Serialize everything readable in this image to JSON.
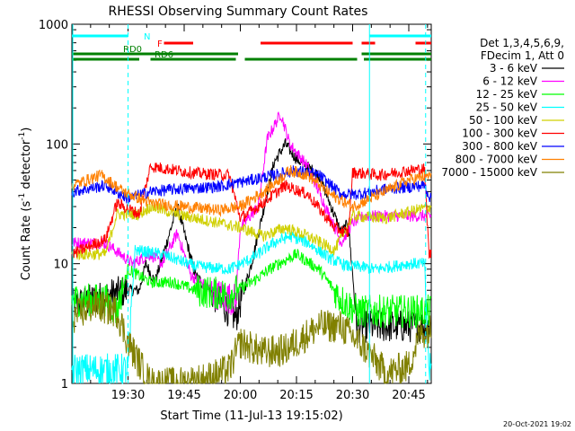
{
  "chart_data": {
    "type": "line",
    "title": "RHESSI Observing Summary Count Rates",
    "xlabel": "Start Time (11-Jul-13 19:15:02)",
    "ylabel_parts": [
      "Count Rate (s",
      "-1",
      " detector",
      "-1",
      ")"
    ],
    "y_scale": "log",
    "ylim": [
      1,
      1000
    ],
    "xlim_minutes": [
      19.25,
      20.85
    ],
    "x_ticks": [
      {
        "t": 19.5,
        "label": "19:30"
      },
      {
        "t": 19.75,
        "label": "19:45"
      },
      {
        "t": 20.0,
        "label": "20:00"
      },
      {
        "t": 20.25,
        "label": "20:15"
      },
      {
        "t": 20.5,
        "label": "20:30"
      },
      {
        "t": 20.75,
        "label": "20:45"
      }
    ],
    "y_ticks": [
      {
        "v": 1,
        "label": "1"
      },
      {
        "v": 10,
        "label": "10"
      },
      {
        "v": 100,
        "label": "100"
      },
      {
        "v": 1000,
        "label": "1000"
      }
    ],
    "legend_header": [
      "Det 1,3,4,5,6,9,",
      "FDecim 1, Att 0"
    ],
    "legend_position": "right",
    "series": [
      {
        "name": "3 - 6 keV",
        "color": "#000000",
        "points": [
          [
            19.25,
            4.5
          ],
          [
            19.5,
            6
          ],
          [
            19.55,
            6
          ],
          [
            19.58,
            10
          ],
          [
            19.62,
            7
          ],
          [
            19.72,
            30
          ],
          [
            19.8,
            8
          ],
          [
            19.9,
            5
          ],
          [
            19.98,
            3.5
          ],
          [
            20.05,
            10
          ],
          [
            20.15,
            70
          ],
          [
            20.2,
            100
          ],
          [
            20.25,
            75
          ],
          [
            20.35,
            55
          ],
          [
            20.45,
            18
          ],
          [
            20.48,
            22
          ],
          [
            20.52,
            3
          ],
          [
            20.75,
            3
          ],
          [
            20.85,
            3
          ]
        ]
      },
      {
        "name": "6 - 12 keV",
        "color": "#ff00ff",
        "points": [
          [
            19.25,
            15
          ],
          [
            19.38,
            15
          ],
          [
            19.42,
            14
          ],
          [
            19.52,
            10
          ],
          [
            19.6,
            12
          ],
          [
            19.65,
            10
          ],
          [
            19.72,
            18
          ],
          [
            19.78,
            8
          ],
          [
            19.9,
            5.5
          ],
          [
            19.98,
            5
          ],
          [
            20.0,
            20
          ],
          [
            20.08,
            30
          ],
          [
            20.12,
            110
          ],
          [
            20.18,
            180
          ],
          [
            20.22,
            100
          ],
          [
            20.3,
            65
          ],
          [
            20.45,
            15
          ],
          [
            20.5,
            22
          ],
          [
            20.55,
            25
          ],
          [
            20.7,
            25
          ],
          [
            20.85,
            25
          ]
        ]
      },
      {
        "name": "12 - 25 keV",
        "color": "#00ff00",
        "points": [
          [
            19.25,
            5
          ],
          [
            19.4,
            5
          ],
          [
            19.45,
            4
          ],
          [
            19.5,
            9
          ],
          [
            19.6,
            7
          ],
          [
            19.7,
            7
          ],
          [
            19.8,
            6
          ],
          [
            19.95,
            5.5
          ],
          [
            20.05,
            7
          ],
          [
            20.15,
            9.5
          ],
          [
            20.25,
            12
          ],
          [
            20.35,
            9
          ],
          [
            20.45,
            5
          ],
          [
            20.52,
            4
          ],
          [
            20.6,
            4
          ],
          [
            20.75,
            4
          ],
          [
            20.85,
            4
          ]
        ]
      },
      {
        "name": "25 - 50 keV",
        "color": "#00ffff",
        "points": [
          [
            19.25,
            1.3
          ],
          [
            19.5,
            1.3
          ],
          [
            19.53,
            13
          ],
          [
            19.65,
            12
          ],
          [
            19.8,
            9.5
          ],
          [
            19.95,
            9
          ],
          [
            20.05,
            11
          ],
          [
            20.15,
            15
          ],
          [
            20.22,
            17
          ],
          [
            20.3,
            15
          ],
          [
            20.4,
            11
          ],
          [
            20.48,
            9.5
          ],
          [
            20.52,
            9.5
          ],
          [
            20.6,
            9
          ],
          [
            20.75,
            10
          ],
          [
            20.82,
            10
          ],
          [
            20.84,
            1.3
          ],
          [
            20.85,
            1.3
          ]
        ]
      },
      {
        "name": "50 - 100 keV",
        "color": "#d0d000",
        "points": [
          [
            19.25,
            12
          ],
          [
            19.4,
            12
          ],
          [
            19.45,
            26
          ],
          [
            19.55,
            26
          ],
          [
            19.6,
            30
          ],
          [
            19.75,
            25
          ],
          [
            19.9,
            22
          ],
          [
            20.0,
            20
          ],
          [
            20.1,
            17
          ],
          [
            20.2,
            20
          ],
          [
            20.3,
            17
          ],
          [
            20.42,
            13
          ],
          [
            20.5,
            25
          ],
          [
            20.65,
            24
          ],
          [
            20.78,
            28
          ],
          [
            20.85,
            30
          ]
        ]
      },
      {
        "name": "100 - 300 keV",
        "color": "#ff0000",
        "points": [
          [
            19.25,
            12
          ],
          [
            19.4,
            16
          ],
          [
            19.45,
            32
          ],
          [
            19.55,
            26
          ],
          [
            19.6,
            65
          ],
          [
            19.8,
            57
          ],
          [
            19.95,
            55
          ],
          [
            20.0,
            24
          ],
          [
            20.08,
            30
          ],
          [
            20.2,
            45
          ],
          [
            20.3,
            38
          ],
          [
            20.42,
            20
          ],
          [
            20.48,
            18
          ],
          [
            20.5,
            58
          ],
          [
            20.62,
            55
          ],
          [
            20.75,
            60
          ],
          [
            20.82,
            62
          ],
          [
            20.84,
            12
          ],
          [
            20.85,
            12
          ]
        ]
      },
      {
        "name": "300 - 800 keV",
        "color": "#0000ff",
        "points": [
          [
            19.25,
            40
          ],
          [
            19.4,
            45
          ],
          [
            19.5,
            35
          ],
          [
            19.6,
            40
          ],
          [
            19.72,
            42
          ],
          [
            19.9,
            44
          ],
          [
            20.05,
            50
          ],
          [
            20.15,
            55
          ],
          [
            20.25,
            60
          ],
          [
            20.35,
            55
          ],
          [
            20.45,
            38
          ],
          [
            20.52,
            38
          ],
          [
            20.65,
            42
          ],
          [
            20.82,
            45
          ],
          [
            20.85,
            34
          ]
        ]
      },
      {
        "name": "800 - 7000 keV",
        "color": "#ff8000",
        "points": [
          [
            19.25,
            45
          ],
          [
            19.38,
            55
          ],
          [
            19.48,
            40
          ],
          [
            19.6,
            32
          ],
          [
            19.75,
            30
          ],
          [
            19.9,
            28
          ],
          [
            20.0,
            30
          ],
          [
            20.12,
            42
          ],
          [
            20.22,
            60
          ],
          [
            20.3,
            55
          ],
          [
            20.4,
            38
          ],
          [
            20.5,
            30
          ],
          [
            20.62,
            38
          ],
          [
            20.75,
            50
          ],
          [
            20.85,
            55
          ]
        ]
      },
      {
        "name": "7000 - 15000 keV",
        "color": "#808000",
        "points": [
          [
            19.25,
            3.5
          ],
          [
            19.35,
            4.5
          ],
          [
            19.45,
            4
          ],
          [
            19.5,
            2.2
          ],
          [
            19.6,
            1
          ],
          [
            19.72,
            1
          ],
          [
            19.85,
            1.1
          ],
          [
            19.95,
            1.3
          ],
          [
            20.0,
            2.2
          ],
          [
            20.1,
            1.8
          ],
          [
            20.2,
            1.9
          ],
          [
            20.35,
            3
          ],
          [
            20.45,
            3
          ],
          [
            20.55,
            2
          ],
          [
            20.65,
            1.2
          ],
          [
            20.75,
            1.4
          ],
          [
            20.8,
            2.6
          ],
          [
            20.85,
            2.8
          ]
        ]
      }
    ],
    "flags": [
      {
        "label": "N",
        "color": "#00ffff",
        "segments": [
          [
            19.25,
            19.5
          ],
          [
            20.575,
            20.85
          ]
        ]
      },
      {
        "label": "F",
        "color": "#ff0000",
        "segments": [
          [
            19.66,
            19.79
          ],
          [
            20.09,
            20.5
          ],
          [
            20.54,
            20.6
          ],
          [
            20.78,
            20.85
          ]
        ]
      },
      {
        "label": "RD0",
        "color": "#008000",
        "segments": [
          [
            19.25,
            19.99
          ],
          [
            20.54,
            20.85
          ]
        ]
      },
      {
        "label": "RD6",
        "color": "#008000",
        "segments": [
          [
            19.25,
            19.55
          ],
          [
            19.6,
            19.98
          ],
          [
            20.02,
            20.52
          ],
          [
            20.55,
            20.85
          ]
        ]
      }
    ],
    "attenuator_markers": [
      19.5,
      20.825
    ],
    "saa_markers": [
      20.575
    ]
  },
  "footer": {
    "timestamp": "20-Oct-2021 19:02"
  }
}
